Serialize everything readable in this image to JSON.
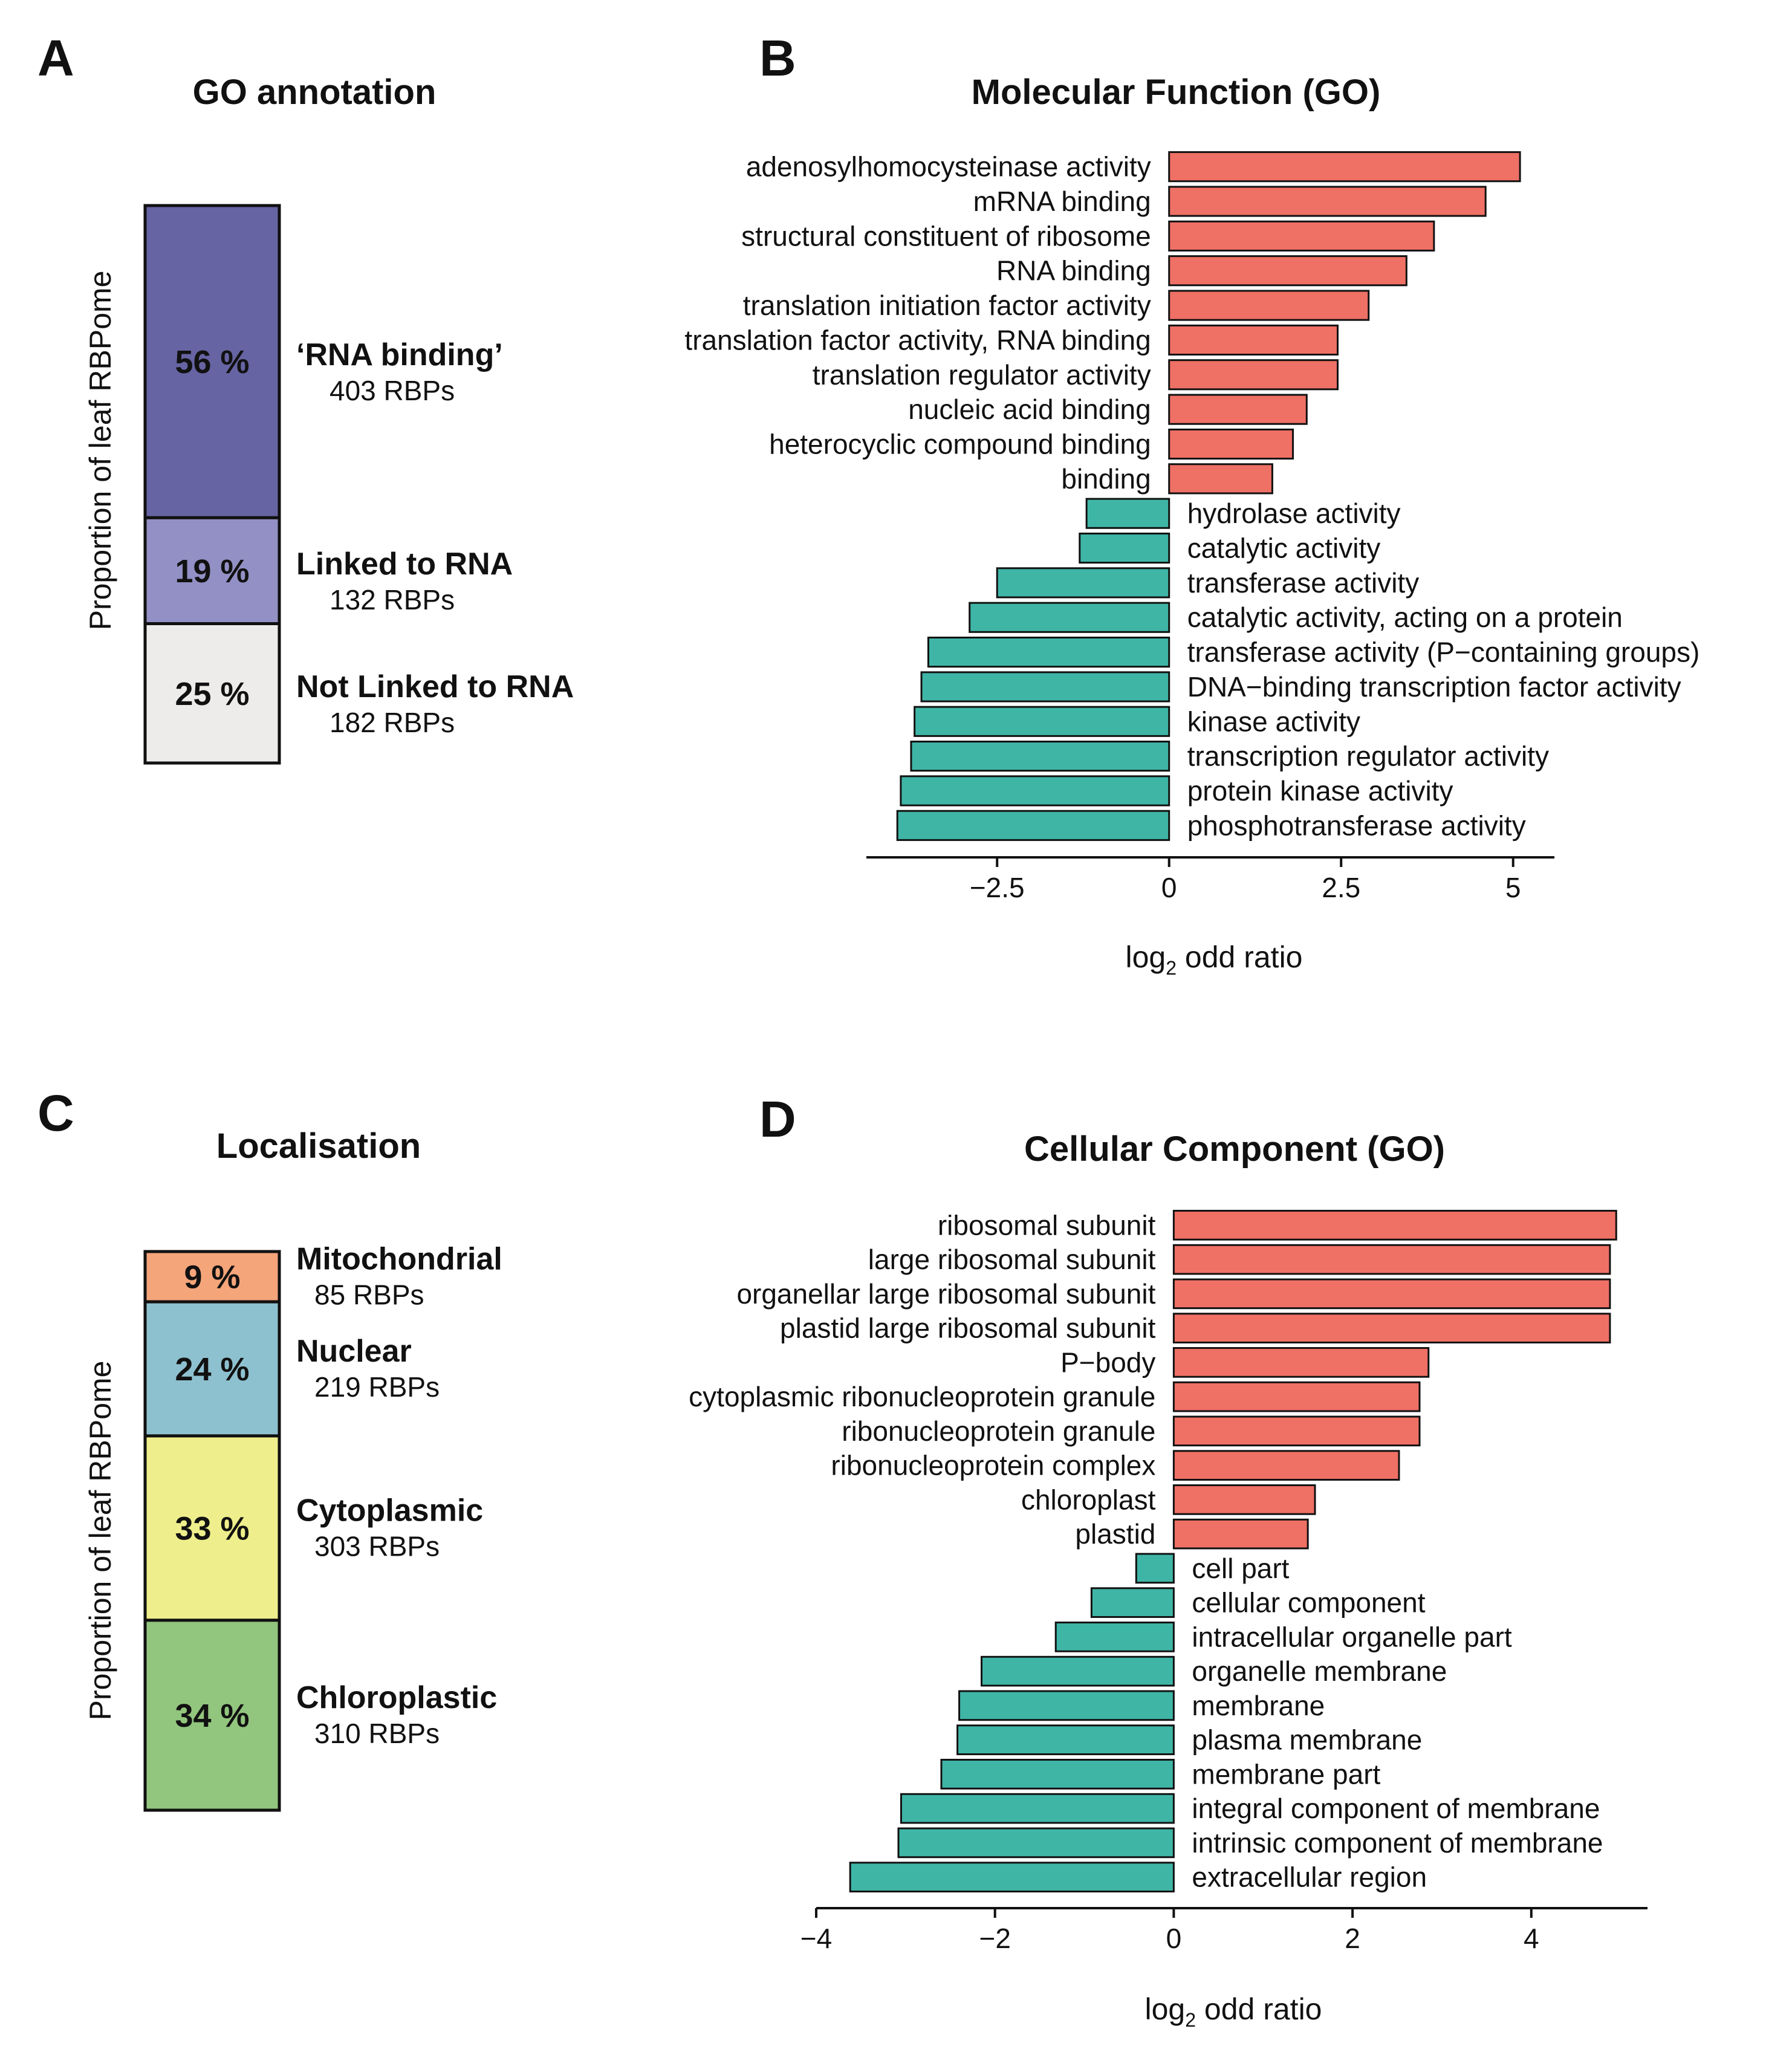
{
  "colors": {
    "positive": "#ef7065",
    "negative": "#3fb5a6",
    "stroke": "#111111"
  },
  "panel_a": {
    "letter": "A",
    "title": "GO annotation",
    "ylabel": "Proportion of leaf RBPome",
    "segments": [
      {
        "pct": "56 %",
        "label": "‘RNA binding’",
        "count": "403 RBPs",
        "fraction": 0.56,
        "color": "#6664a2"
      },
      {
        "pct": "19 %",
        "label": "Linked to RNA",
        "count": "132 RBPs",
        "fraction": 0.19,
        "color": "#9290c4"
      },
      {
        "pct": "25 %",
        "label": "Not Linked to RNA",
        "count": "182 RBPs",
        "fraction": 0.25,
        "color": "#eeecea"
      }
    ]
  },
  "panel_c": {
    "letter": "C",
    "title": "Localisation",
    "ylabel": "Proportion of leaf RBPome",
    "segments": [
      {
        "pct": "9 %",
        "label": "Mitochondrial",
        "count": "85 RBPs",
        "fraction": 0.09,
        "color": "#f4a57a"
      },
      {
        "pct": "24 %",
        "label": "Nuclear",
        "count": "219 RBPs",
        "fraction": 0.24,
        "color": "#8ec1cf"
      },
      {
        "pct": "33 %",
        "label": "Cytoplasmic",
        "count": "303 RBPs",
        "fraction": 0.33,
        "color": "#eeee8c"
      },
      {
        "pct": "34 %",
        "label": "Chloroplastic",
        "count": "310 RBPs",
        "fraction": 0.34,
        "color": "#92c57e"
      }
    ]
  },
  "chart_data": [
    {
      "type": "bar",
      "orientation": "horizontal",
      "letter": "B",
      "title": "Molecular Function (GO)",
      "xlabel": "log",
      "xlabel_sub": "2",
      "xlabel_rest": " odd ratio",
      "xlim": [
        -4.4,
        5.6
      ],
      "xticks": [
        -2.5,
        0,
        2.5,
        5
      ],
      "xtick_labels": [
        "−2.5",
        "0",
        "2.5",
        "5"
      ],
      "categories": [
        "adenosylhomocysteinase activity",
        "mRNA binding",
        "structural constituent of ribosome",
        "RNA binding",
        "translation initiation factor activity",
        "translation factor activity, RNA binding",
        "translation regulator activity",
        "nucleic acid binding",
        "heterocyclic compound binding",
        "binding",
        "hydrolase activity",
        "catalytic activity",
        "transferase activity",
        "catalytic activity, acting on a protein",
        "transferase activity (P−containing groups)",
        "DNA−binding transcription factor activity",
        "kinase activity",
        "transcription regulator activity",
        "protein kinase activity",
        "phosphotransferase activity"
      ],
      "values": [
        5.1,
        4.6,
        3.85,
        3.45,
        2.9,
        2.45,
        2.45,
        2.0,
        1.8,
        1.5,
        -1.2,
        -1.3,
        -2.5,
        -2.9,
        -3.5,
        -3.6,
        -3.7,
        -3.75,
        -3.9,
        -3.95
      ]
    },
    {
      "type": "bar",
      "orientation": "horizontal",
      "letter": "D",
      "title": "Cellular Component (GO)",
      "xlabel": "log",
      "xlabel_sub": "2",
      "xlabel_rest": " odd ratio",
      "xlim": [
        -4.0,
        5.3
      ],
      "xticks": [
        -4,
        -2,
        0,
        2,
        4
      ],
      "xtick_labels": [
        "−4",
        "−2",
        "0",
        "2",
        "4"
      ],
      "categories": [
        "ribosomal subunit",
        "large ribosomal subunit",
        "organellar large ribosomal subunit",
        "plastid large ribosomal subunit",
        "P−body",
        "cytoplasmic ribonucleoprotein granule",
        "ribonucleoprotein granule",
        "ribonucleoprotein complex",
        "chloroplast",
        "plastid",
        "cell part",
        "cellular component",
        "intracellular organelle part",
        "organelle membrane",
        "membrane",
        "plasma membrane",
        "membrane part",
        "integral component of membrane",
        "intrinsic component of membrane",
        "extracellular region"
      ],
      "values": [
        4.95,
        4.88,
        4.88,
        4.88,
        2.85,
        2.75,
        2.75,
        2.52,
        1.58,
        1.5,
        -0.42,
        -0.92,
        -1.32,
        -2.15,
        -2.4,
        -2.42,
        -2.6,
        -3.05,
        -3.08,
        -3.62
      ]
    }
  ]
}
